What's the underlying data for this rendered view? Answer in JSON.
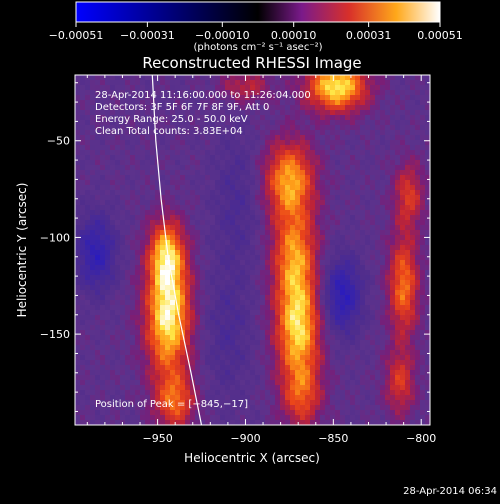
{
  "chart_data": {
    "type": "heatmap",
    "title": "Reconstructed RHESSI Image",
    "xlabel": "Heliocentric X (arcsec)",
    "ylabel": "Heliocentric Y (arcsec)",
    "xlim": [
      -997,
      -795
    ],
    "ylim": [
      -197,
      -16
    ],
    "x_ticks": [
      -950,
      -900,
      -850,
      -800
    ],
    "x_tick_labels": [
      "−950",
      "−900",
      "−850",
      "−800"
    ],
    "y_ticks": [
      -50,
      -100,
      -150
    ],
    "y_tick_labels": [
      "−50",
      "−100",
      "−150"
    ],
    "colorbar": {
      "min": -0.00051,
      "max": 0.00051,
      "ticks": [
        -0.00051,
        -0.00031,
        -0.0001,
        0.0001,
        0.00031,
        0.00051
      ],
      "tick_labels": [
        "−0.00051",
        "−0.00031",
        "−0.00010",
        "0.00010",
        "0.00031",
        "0.00051"
      ],
      "units": "(photons cm⁻² s⁻¹ asec⁻²)"
    },
    "info_lines": [
      "28-Apr-2014 11:16:00.000 to 11:26:04.000",
      "Detectors: 3F 5F 6F 7F 8F 9F, Att 0",
      "Energy Range: 25.0 - 50.0 keV",
      "Clean      Total counts: 3.83E+04"
    ],
    "peak_label": "Position of Peak = [−845,−17]",
    "peak": [
      -845,
      -17
    ],
    "footer": "28-Apr-2014 06:34",
    "sources": [
      {
        "x": -944,
        "y": -140,
        "sx": 9,
        "sy": 22,
        "amp": 1.0
      },
      {
        "x": -945,
        "y": -108,
        "sx": 7,
        "sy": 12,
        "amp": 0.65
      },
      {
        "x": -940,
        "y": -185,
        "sx": 8,
        "sy": 10,
        "amp": 0.55
      },
      {
        "x": -875,
        "y": -70,
        "sx": 10,
        "sy": 14,
        "amp": 0.75
      },
      {
        "x": -872,
        "y": -110,
        "sx": 9,
        "sy": 18,
        "amp": 0.7
      },
      {
        "x": -870,
        "y": -148,
        "sx": 9,
        "sy": 18,
        "amp": 0.85
      },
      {
        "x": -868,
        "y": -182,
        "sx": 8,
        "sy": 12,
        "amp": 0.5
      },
      {
        "x": -848,
        "y": -22,
        "sx": 12,
        "sy": 9,
        "amp": 0.95
      },
      {
        "x": -900,
        "y": -22,
        "sx": 10,
        "sy": 6,
        "amp": 0.35
      },
      {
        "x": -807,
        "y": -78,
        "sx": 6,
        "sy": 12,
        "amp": 0.45
      },
      {
        "x": -810,
        "y": -125,
        "sx": 6,
        "sy": 18,
        "amp": 0.65
      },
      {
        "x": -812,
        "y": -175,
        "sx": 6,
        "sy": 12,
        "amp": 0.45
      },
      {
        "x": -985,
        "y": -108,
        "sx": 8,
        "sy": 14,
        "amp": -0.5
      },
      {
        "x": -845,
        "y": -130,
        "sx": 8,
        "sy": 14,
        "amp": -0.55
      },
      {
        "x": -905,
        "y": -80,
        "sx": 10,
        "sy": 25,
        "amp": -0.2
      },
      {
        "x": -910,
        "y": -150,
        "sx": 10,
        "sy": 25,
        "amp": -0.2
      }
    ],
    "limb_curve": [
      [
        -953,
        -16
      ],
      [
        -951,
        -50
      ],
      [
        -948,
        -80
      ],
      [
        -944,
        -110
      ],
      [
        -938,
        -140
      ],
      [
        -931,
        -170
      ],
      [
        -925,
        -197
      ]
    ]
  }
}
